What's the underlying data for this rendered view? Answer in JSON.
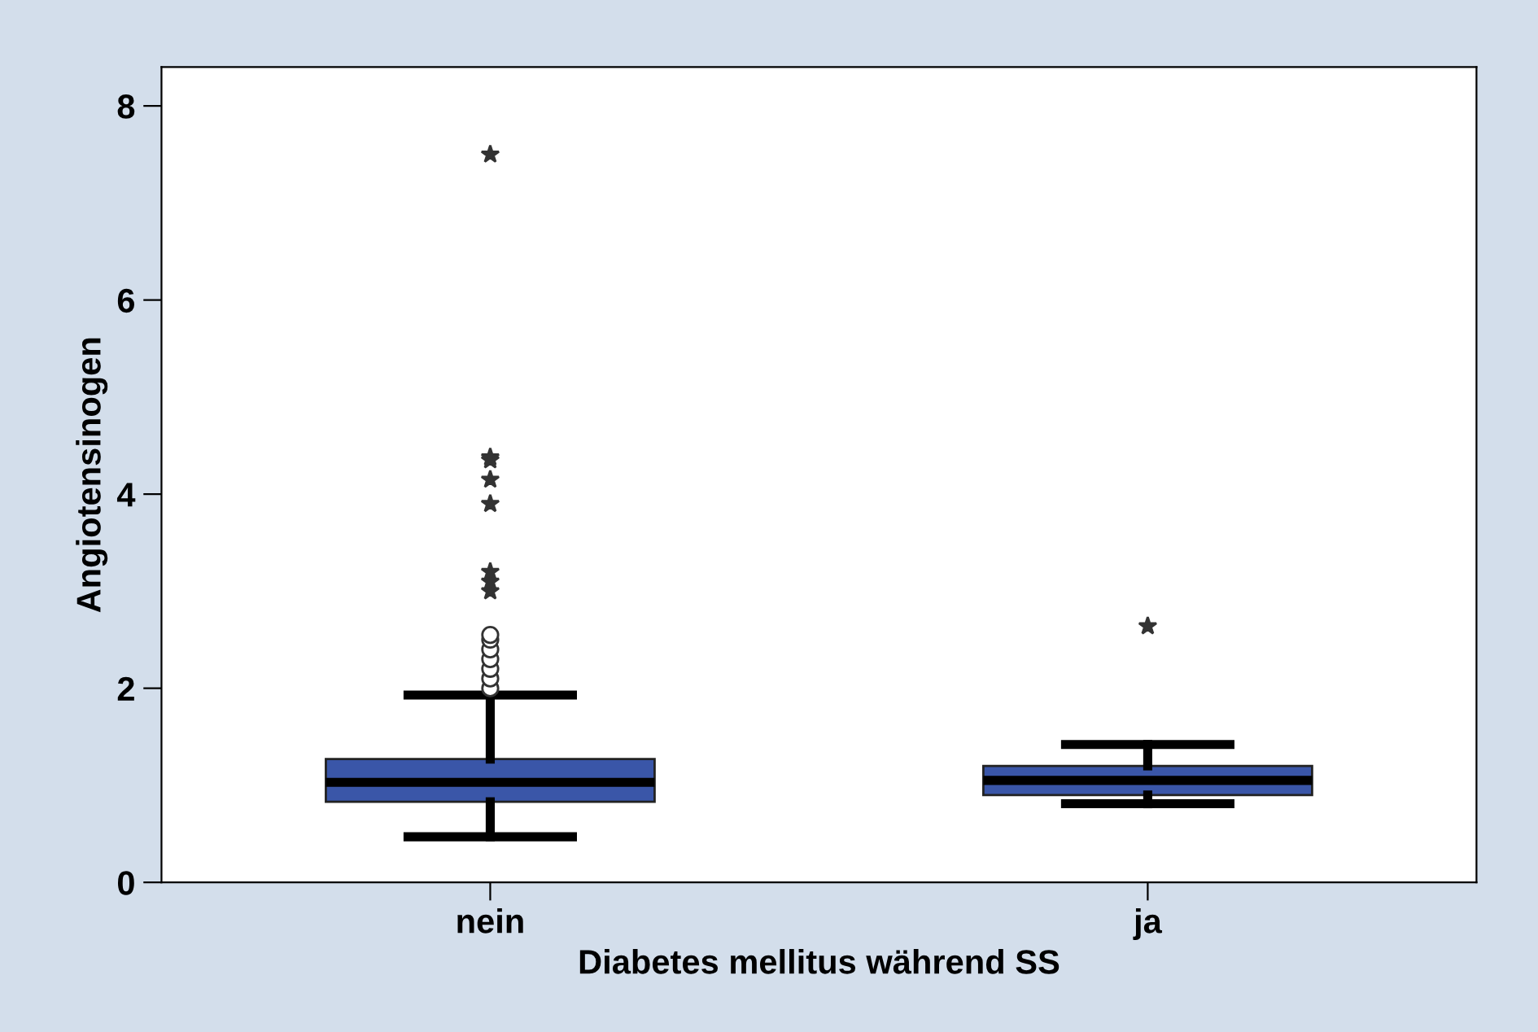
{
  "chart_data": {
    "type": "box",
    "xlabel": "Diabetes mellitus während SS",
    "ylabel": "Angiotensinogen",
    "categories": [
      "nein",
      "ja"
    ],
    "boxes": [
      {
        "low": 0.47,
        "q1": 0.83,
        "median": 1.03,
        "q3": 1.27,
        "high": 1.93,
        "outliers": [
          2.0,
          2.1,
          2.2,
          2.3,
          2.4,
          2.5,
          2.55,
          3.0,
          3.1,
          3.2,
          3.9,
          4.15,
          4.35,
          4.38,
          7.5
        ]
      },
      {
        "low": 0.81,
        "q1": 0.9,
        "median": 1.05,
        "q3": 1.2,
        "high": 1.42,
        "outliers": [
          2.64
        ]
      }
    ],
    "color": "#3a56a8",
    "ylim": [
      0,
      8.4
    ],
    "yticks": [
      0,
      2,
      4,
      6,
      8
    ],
    "grid": false
  }
}
